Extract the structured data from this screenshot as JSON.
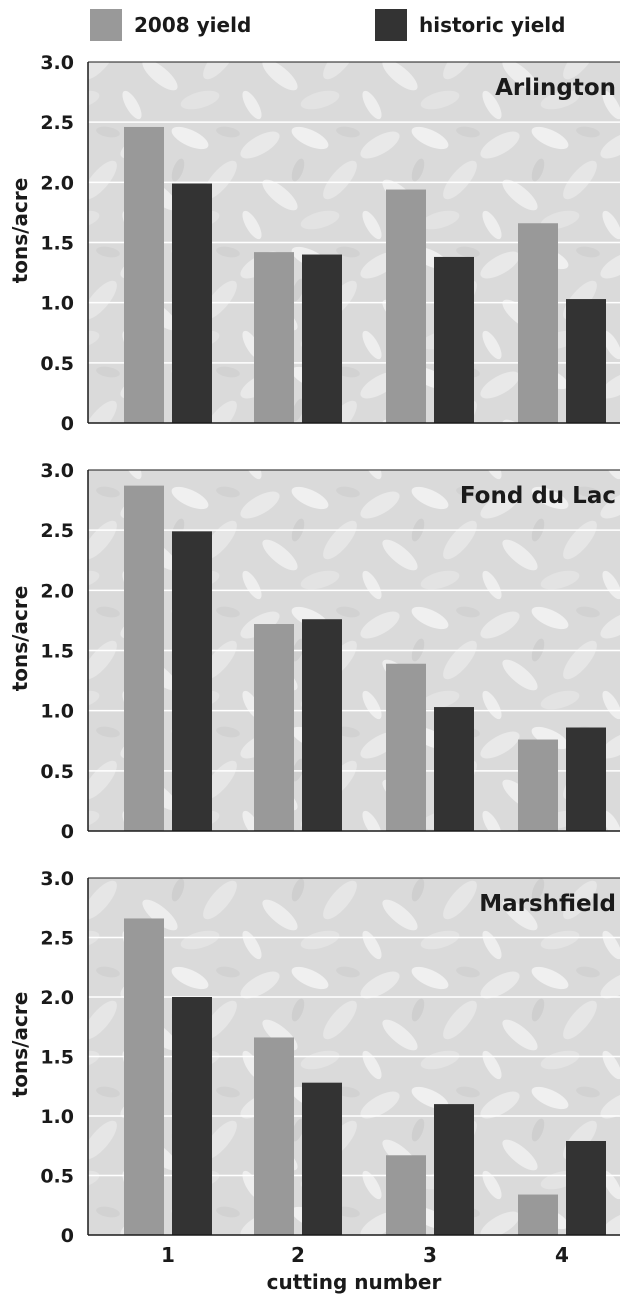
{
  "legend": {
    "items": [
      {
        "label": "2008 yield",
        "color": "#999999"
      },
      {
        "label": "historic yield",
        "color": "#333333"
      }
    ]
  },
  "colors": {
    "yield_2008": "#999999",
    "historic": "#333333",
    "panel_bg": "#dcdcdc",
    "grid": "#ffffff"
  },
  "chart_data": [
    {
      "type": "bar",
      "title": "Arlington",
      "ylabel": "tons/acre",
      "xlabel": "",
      "categories": [
        "1",
        "2",
        "3",
        "4"
      ],
      "ylim": [
        0,
        3.0
      ],
      "yticks": [
        "0",
        "0.5",
        "1.0",
        "1.5",
        "2.0",
        "2.5",
        "3.0"
      ],
      "grid": true,
      "series": [
        {
          "name": "2008 yield",
          "values": [
            2.46,
            1.42,
            1.94,
            1.66
          ]
        },
        {
          "name": "historic yield",
          "values": [
            1.99,
            1.4,
            1.38,
            1.03
          ]
        }
      ]
    },
    {
      "type": "bar",
      "title": "Fond du Lac",
      "ylabel": "tons/acre",
      "xlabel": "",
      "categories": [
        "1",
        "2",
        "3",
        "4"
      ],
      "ylim": [
        0,
        3.0
      ],
      "yticks": [
        "0",
        "0.5",
        "1.0",
        "1.5",
        "2.0",
        "2.5",
        "3.0"
      ],
      "grid": true,
      "series": [
        {
          "name": "2008 yield",
          "values": [
            2.87,
            1.72,
            1.39,
            0.76
          ]
        },
        {
          "name": "historic yield",
          "values": [
            2.49,
            1.76,
            1.03,
            0.86
          ]
        }
      ]
    },
    {
      "type": "bar",
      "title": "Marshfield",
      "ylabel": "tons/acre",
      "xlabel": "cutting number",
      "categories": [
        "1",
        "2",
        "3",
        "4"
      ],
      "ylim": [
        0,
        3.0
      ],
      "yticks": [
        "0",
        "0.5",
        "1.0",
        "1.5",
        "2.0",
        "2.5",
        "3.0"
      ],
      "grid": true,
      "series": [
        {
          "name": "2008 yield",
          "values": [
            2.66,
            1.66,
            0.67,
            0.34
          ]
        },
        {
          "name": "historic yield",
          "values": [
            2.0,
            1.28,
            1.1,
            0.79
          ]
        }
      ]
    }
  ]
}
